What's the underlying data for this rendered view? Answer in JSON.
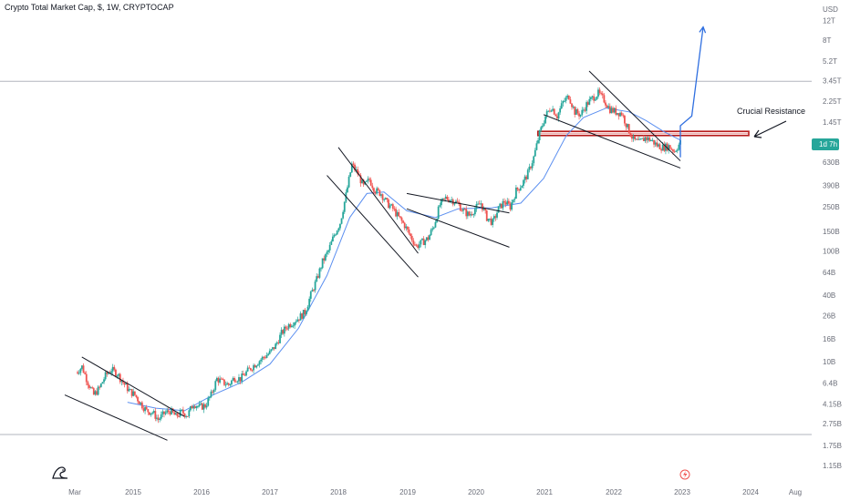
{
  "title": "Crypto Total Market Cap, $, 1W, CRYPTOCAP",
  "y_currency_label": "USD",
  "price_badge": "1d 7h",
  "annotation": "Crucial Resistance",
  "colors": {
    "up": "#26a69a",
    "down": "#ef5350",
    "ma": "#5b8ff0",
    "projection": "#2f6fe0",
    "resistance": "#b71c1c",
    "resistance_fill": "#fbe3e3",
    "trendline": "#131722",
    "badge": "#26a69a",
    "hline": "#b2b5be",
    "axis_text": "#6a6d78"
  },
  "icons": [
    "tradingview-logo-icon",
    "lightning-event-icon"
  ],
  "chart_data": {
    "type": "candlestick",
    "title": "Crypto Total Market Cap, $, 1W, CRYPTOCAP",
    "y_scale": "log",
    "y_unit": "USD",
    "y_ticks": [
      "12T",
      "8T",
      "5.2T",
      "3.45T",
      "2.25T",
      "1.45T",
      "630B",
      "390B",
      "250B",
      "150B",
      "100B",
      "64B",
      "40B",
      "26B",
      "16B",
      "10B",
      "6.4B",
      "4.15B",
      "2.75B",
      "1.75B",
      "1.15B"
    ],
    "x_ticks": [
      "Mar",
      "2015",
      "2016",
      "2017",
      "2018",
      "2019",
      "2020",
      "2021",
      "2022",
      "2023",
      "2024",
      "Aug"
    ],
    "weeks_per_point": 4,
    "series": [
      {
        "x_start": "2014-03",
        "x_end": "2023-01",
        "values": [
          8,
          9,
          6.5,
          5,
          5.8,
          7.5,
          8.5,
          7.8,
          6.5,
          5.5,
          5,
          4.2,
          3.6,
          3.5,
          3,
          3.4,
          3.6,
          3.2,
          3.5,
          3.3,
          4.2,
          3.9,
          4,
          5,
          7,
          6.5,
          6.2,
          7.2,
          7,
          8,
          9,
          10,
          11,
          12,
          14,
          18,
          21,
          23,
          25,
          28,
          40,
          55,
          80,
          100,
          140,
          180,
          320,
          600,
          500,
          380,
          440,
          350,
          330,
          270,
          240,
          200,
          170,
          135,
          110,
          120,
          130,
          170,
          260,
          300,
          290,
          270,
          230,
          210,
          240,
          270,
          200,
          180,
          240,
          280,
          250,
          350,
          400,
          500,
          700,
          1150,
          1650,
          2000,
          1650,
          2200,
          2500,
          1800,
          1700,
          2100,
          2400,
          2650,
          2300,
          1900,
          1800,
          1750,
          1300,
          1000,
          950,
          1050,
          1000,
          900,
          860,
          880,
          800,
          950
        ]
      }
    ],
    "moving_average": [
      {
        "x": "2014-12",
        "y": 4.3
      },
      {
        "x": "2015-05",
        "y": 3.8
      },
      {
        "x": "2015-10",
        "y": 3.6
      },
      {
        "x": "2016-03",
        "y": 5.0
      },
      {
        "x": "2016-08",
        "y": 6.5
      },
      {
        "x": "2017-01",
        "y": 9.5
      },
      {
        "x": "2017-06",
        "y": 20
      },
      {
        "x": "2017-11",
        "y": 60
      },
      {
        "x": "2018-03",
        "y": 200
      },
      {
        "x": "2018-06",
        "y": 330
      },
      {
        "x": "2018-09",
        "y": 340
      },
      {
        "x": "2019-01",
        "y": 230
      },
      {
        "x": "2019-06",
        "y": 200
      },
      {
        "x": "2019-10",
        "y": 240
      },
      {
        "x": "2020-04",
        "y": 245
      },
      {
        "x": "2020-09",
        "y": 270
      },
      {
        "x": "2021-01",
        "y": 450
      },
      {
        "x": "2021-05",
        "y": 1100
      },
      {
        "x": "2021-08",
        "y": 1600
      },
      {
        "x": "2021-12",
        "y": 1950
      },
      {
        "x": "2022-04",
        "y": 1800
      },
      {
        "x": "2022-07",
        "y": 1500
      },
      {
        "x": "2022-10",
        "y": 1200
      },
      {
        "x": "2023-01",
        "y": 1000
      }
    ],
    "trendlines": [
      {
        "from": {
          "x": "2014-01",
          "y": 5.0
        },
        "to": {
          "x": "2015-07",
          "y": 1.95
        }
      },
      {
        "from": {
          "x": "2014-04",
          "y": 11.0
        },
        "to": {
          "x": "2015-10",
          "y": 3.2
        }
      },
      {
        "from": {
          "x": "2017-11",
          "y": 480
        },
        "to": {
          "x": "2019-03",
          "y": 58
        }
      },
      {
        "from": {
          "x": "2018-01",
          "y": 860
        },
        "to": {
          "x": "2019-03",
          "y": 95
        }
      },
      {
        "from": {
          "x": "2019-01",
          "y": 330
        },
        "to": {
          "x": "2020-07",
          "y": 220
        }
      },
      {
        "from": {
          "x": "2019-01",
          "y": 240
        },
        "to": {
          "x": "2020-07",
          "y": 108
        }
      },
      {
        "from": {
          "x": "2021-01",
          "y": 1700
        },
        "to": {
          "x": "2023-01",
          "y": 560
        }
      },
      {
        "from": {
          "x": "2021-09",
          "y": 4200
        },
        "to": {
          "x": "2023-01",
          "y": 650
        }
      }
    ],
    "resistance_zone": {
      "x_start": "2020-12",
      "x_end": "2024-01",
      "y_low": 1100,
      "y_high": 1200
    },
    "projection": [
      {
        "x": "2023-01",
        "y": 700
      },
      {
        "x": "2023-01",
        "y": 1350
      },
      {
        "x": "2023-03",
        "y": 1650
      },
      {
        "x": "2023-05",
        "y": 10500
      }
    ],
    "horizontal_lines": [
      3400,
      2.2
    ]
  }
}
